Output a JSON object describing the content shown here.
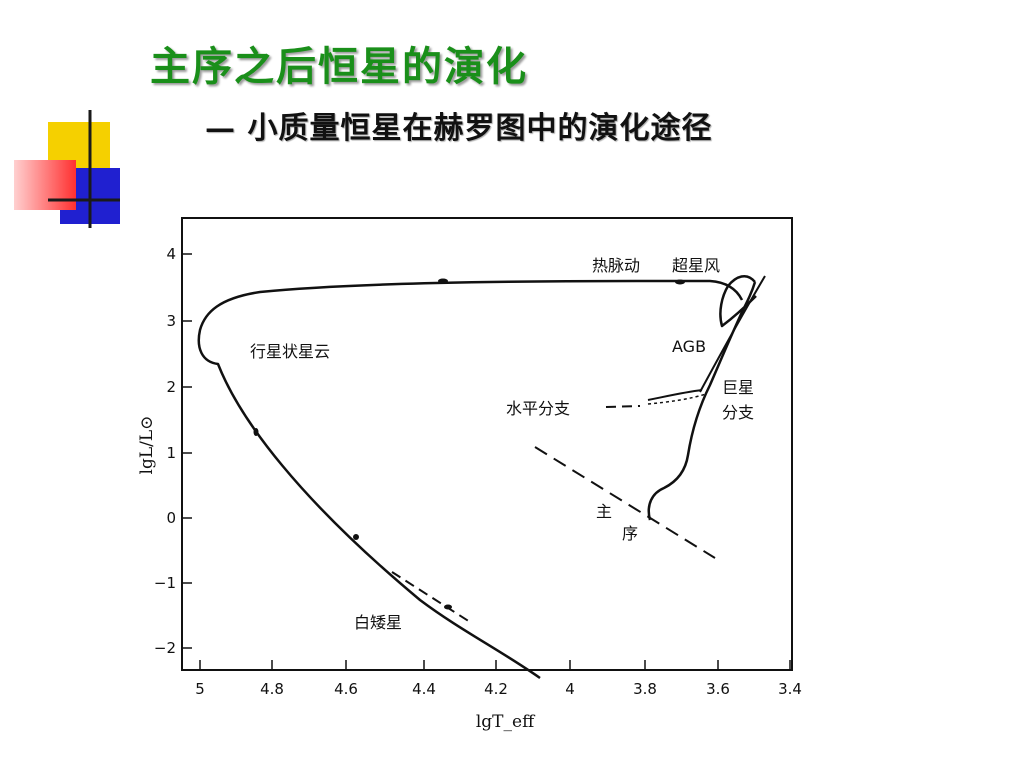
{
  "slide": {
    "title": "主序之后恒星的演化",
    "subtitle": "— 小质量恒星在赫罗图中的演化途径"
  },
  "colors": {
    "title": "#1a8f1a",
    "deco_yellow": "#f5d000",
    "deco_red": "#ff3030",
    "deco_blue": "#2020d0",
    "deco_cross": "#1a1a1a"
  },
  "diagram": {
    "x_axis_label": "lgT_eff",
    "y_axis_label": "lgL/L⊙",
    "x_ticks": [
      "5",
      "4.8",
      "4.6",
      "4.4",
      "4.2",
      "4",
      "3.8",
      "3.6",
      "3.4"
    ],
    "y_ticks": [
      "4",
      "3",
      "2",
      "1",
      "0",
      "−1",
      "−2"
    ],
    "labels": {
      "thermal_pulse": "热脉动",
      "superwind": "超星风",
      "agb": "AGB",
      "planetary_nebula": "行星状星云",
      "horizontal_branch": "水平分支",
      "giant_branch_1": "巨星",
      "giant_branch_2": "分支",
      "main_sequence_1": "主",
      "main_sequence_2": "序",
      "white_dwarf": "白矮星"
    }
  }
}
